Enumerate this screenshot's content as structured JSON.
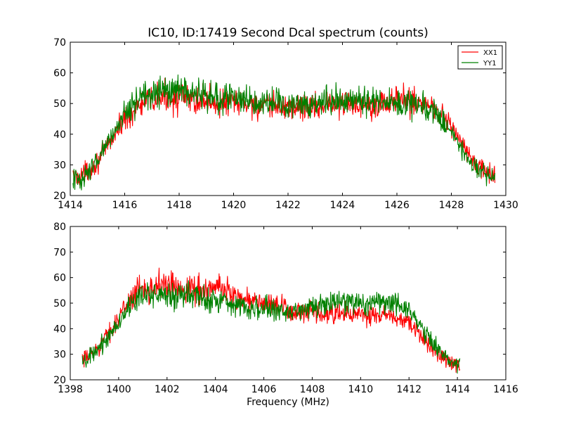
{
  "chart_data": [
    {
      "type": "line",
      "title": "IC10, ID:17419 Second Dcal spectrum (counts)",
      "xlabel": "",
      "ylabel": "",
      "xlim": [
        1414,
        1430
      ],
      "ylim": [
        20,
        70
      ],
      "xticks": [
        1414,
        1416,
        1418,
        1420,
        1422,
        1424,
        1426,
        1428,
        1430
      ],
      "yticks": [
        20,
        30,
        40,
        50,
        60,
        70
      ],
      "grid": false,
      "legend_position": "top-right",
      "series": [
        {
          "name": "XX1",
          "color": "#ff0000",
          "x": [
            1414.1,
            1414.5,
            1415.0,
            1415.5,
            1416.0,
            1416.5,
            1417.0,
            1417.5,
            1418.0,
            1418.5,
            1419.0,
            1419.5,
            1420.0,
            1420.5,
            1421.0,
            1421.5,
            1422.0,
            1422.5,
            1423.0,
            1423.5,
            1424.0,
            1424.5,
            1425.0,
            1425.5,
            1426.0,
            1426.5,
            1427.0,
            1427.5,
            1428.0,
            1428.5,
            1429.0,
            1429.6
          ],
          "y": [
            26,
            27,
            31,
            38,
            45,
            49,
            51,
            52,
            52,
            51,
            51,
            50,
            50,
            50,
            49,
            49,
            49,
            49,
            49,
            50,
            50,
            50,
            50,
            50,
            51,
            51,
            50,
            48,
            43,
            35,
            29,
            26
          ]
        },
        {
          "name": "YY1",
          "color": "#008000",
          "x": [
            1414.1,
            1414.5,
            1415.0,
            1415.5,
            1416.0,
            1416.5,
            1417.0,
            1417.5,
            1418.0,
            1418.5,
            1419.0,
            1419.5,
            1420.0,
            1420.5,
            1421.0,
            1421.5,
            1422.0,
            1422.5,
            1423.0,
            1423.5,
            1424.0,
            1424.5,
            1425.0,
            1425.5,
            1426.0,
            1426.5,
            1427.0,
            1427.5,
            1428.0,
            1428.5,
            1429.0,
            1429.6
          ],
          "y": [
            25,
            26,
            31,
            39,
            47,
            52,
            53,
            54,
            54,
            53,
            52,
            52,
            52,
            51,
            51,
            50,
            50,
            50,
            50,
            51,
            51,
            51,
            51,
            51,
            50,
            50,
            49,
            46,
            41,
            33,
            28,
            25
          ]
        }
      ]
    },
    {
      "type": "line",
      "title": "",
      "xlabel": "Frequency (MHz)",
      "ylabel": "",
      "xlim": [
        1398,
        1416
      ],
      "ylim": [
        20,
        80
      ],
      "xticks": [
        1398,
        1400,
        1402,
        1404,
        1406,
        1408,
        1410,
        1412,
        1414,
        1416
      ],
      "yticks": [
        20,
        30,
        40,
        50,
        60,
        70,
        80
      ],
      "grid": false,
      "series": [
        {
          "name": "XX1",
          "color": "#ff0000",
          "x": [
            1398.5,
            1399.0,
            1399.5,
            1400.0,
            1400.5,
            1401.0,
            1401.5,
            1402.0,
            1402.5,
            1403.0,
            1403.5,
            1404.0,
            1404.5,
            1405.0,
            1405.5,
            1406.0,
            1406.5,
            1407.0,
            1407.5,
            1408.0,
            1408.5,
            1409.0,
            1409.5,
            1410.0,
            1410.5,
            1411.0,
            1411.5,
            1412.0,
            1412.5,
            1413.0,
            1413.5,
            1414.1
          ],
          "y": [
            27,
            31,
            37,
            44,
            52,
            56,
            57,
            57,
            56,
            56,
            55,
            56,
            55,
            52,
            51,
            50,
            49,
            47,
            46,
            46,
            45,
            46,
            46,
            45,
            45,
            45,
            44,
            42,
            37,
            32,
            28,
            26
          ]
        },
        {
          "name": "YY1",
          "color": "#008000",
          "x": [
            1398.5,
            1399.0,
            1399.5,
            1400.0,
            1400.5,
            1401.0,
            1401.5,
            1402.0,
            1402.5,
            1403.0,
            1403.5,
            1404.0,
            1404.5,
            1405.0,
            1405.5,
            1406.0,
            1406.5,
            1407.0,
            1407.5,
            1408.0,
            1408.5,
            1409.0,
            1409.5,
            1410.0,
            1410.5,
            1411.0,
            1411.5,
            1412.0,
            1412.5,
            1413.0,
            1413.5,
            1414.1
          ],
          "y": [
            26,
            30,
            36,
            43,
            49,
            53,
            54,
            53,
            53,
            53,
            52,
            51,
            51,
            49,
            48,
            48,
            47,
            47,
            47,
            48,
            49,
            50,
            50,
            50,
            50,
            51,
            50,
            47,
            41,
            34,
            29,
            26
          ]
        }
      ]
    }
  ]
}
